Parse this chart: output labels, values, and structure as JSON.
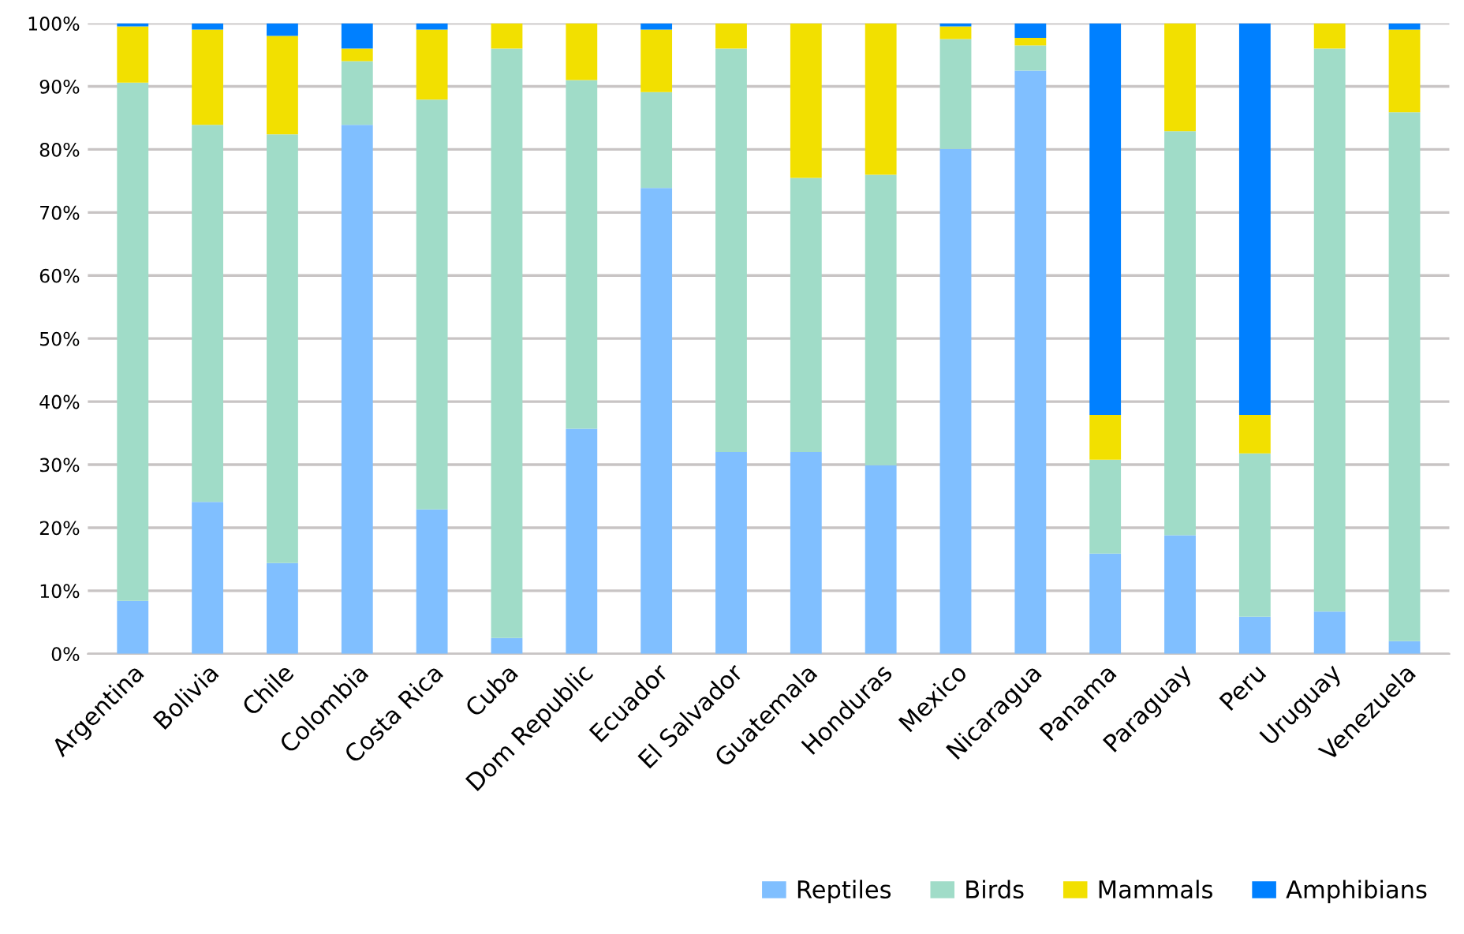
{
  "chart_data": {
    "type": "bar",
    "stacked": true,
    "categories": [
      "Argentina",
      "Bolivia",
      "Chile",
      "Colombia",
      "Costa Rica",
      "Cuba",
      "Dom Republic",
      "Ecuador",
      "El Salvador",
      "Guatemala",
      "Honduras",
      "Mexico",
      "Nicaragua",
      "Panama",
      "Paraguay",
      "Peru",
      "Uruguay",
      "Venezuela"
    ],
    "series": [
      {
        "name": "Reptiles",
        "color": "#80bfff",
        "values": [
          8.4,
          24.1,
          14.4,
          83.9,
          22.9,
          2.5,
          35.7,
          73.9,
          32.0,
          32.0,
          29.9,
          80.1,
          92.5,
          15.9,
          18.8,
          5.9,
          6.7,
          2.0
        ]
      },
      {
        "name": "Birds",
        "color": "#a0dcc8",
        "values": [
          82.2,
          59.8,
          68.0,
          10.1,
          65.0,
          93.5,
          55.3,
          15.2,
          64.0,
          43.5,
          46.1,
          17.4,
          4.0,
          14.9,
          64.1,
          25.9,
          89.3,
          83.9
        ]
      },
      {
        "name": "Mammals",
        "color": "#f2e000",
        "values": [
          8.9,
          15.1,
          15.6,
          2.0,
          11.1,
          4.0,
          9.0,
          9.9,
          4.0,
          24.5,
          24.0,
          2.0,
          1.2,
          7.1,
          17.1,
          6.1,
          4.0,
          13.1
        ]
      },
      {
        "name": "Amphibians",
        "color": "#0080ff",
        "values": [
          0.5,
          1.0,
          2.0,
          4.0,
          1.0,
          0,
          0,
          1.0,
          0,
          0,
          0,
          0.5,
          2.3,
          62.1,
          0,
          62.1,
          0,
          1.0
        ]
      }
    ],
    "ylim": [
      0,
      100
    ],
    "yticks": [
      {
        "value": 0,
        "label": "0%"
      },
      {
        "value": 10,
        "label": "10%"
      },
      {
        "value": 20,
        "label": "20%"
      },
      {
        "value": 30,
        "label": "30%"
      },
      {
        "value": 40,
        "label": "40%"
      },
      {
        "value": 50,
        "label": "50%"
      },
      {
        "value": 60,
        "label": "60%"
      },
      {
        "value": 70,
        "label": "70%"
      },
      {
        "value": 80,
        "label": "80%"
      },
      {
        "value": 90,
        "label": "90%"
      },
      {
        "value": 100,
        "label": "100%"
      }
    ],
    "grid": "y",
    "legend": "bottom right"
  }
}
